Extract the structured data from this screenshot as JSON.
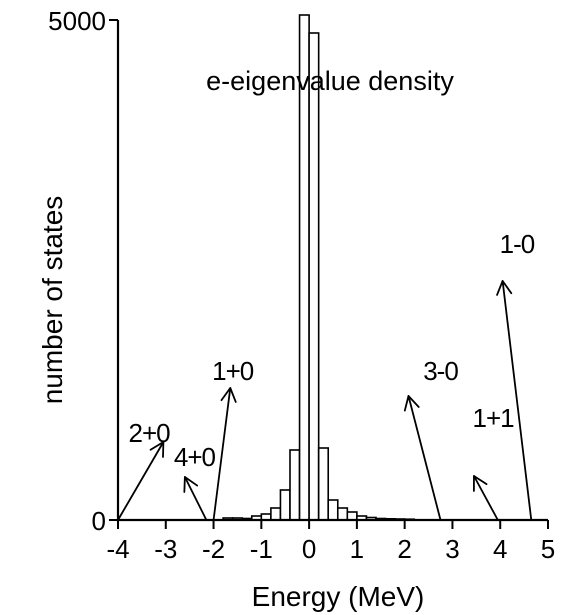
{
  "chart_data": {
    "type": "bar",
    "title": "e-eigenvalue density",
    "xlabel": "Energy (MeV)",
    "ylabel": "number of states",
    "xlim": [
      -4,
      5
    ],
    "ylim": [
      0,
      5000
    ],
    "xticks": [
      "-4",
      "-3",
      "-2",
      "-1",
      "0",
      "1",
      "2",
      "3",
      "4",
      "5"
    ],
    "yticks": [
      "0",
      "5000"
    ],
    "bin_width": 0.2,
    "bins": [
      {
        "x": -1.8,
        "value": 20
      },
      {
        "x": -1.6,
        "value": 20
      },
      {
        "x": -1.4,
        "value": 15
      },
      {
        "x": -1.2,
        "value": 40
      },
      {
        "x": -1.0,
        "value": 60
      },
      {
        "x": -0.8,
        "value": 120
      },
      {
        "x": -0.6,
        "value": 300
      },
      {
        "x": -0.4,
        "value": 700
      },
      {
        "x": -0.2,
        "value": 5050
      },
      {
        "x": 0.0,
        "value": 4870
      },
      {
        "x": 0.2,
        "value": 720
      },
      {
        "x": 0.4,
        "value": 200
      },
      {
        "x": 0.6,
        "value": 120
      },
      {
        "x": 0.8,
        "value": 80
      },
      {
        "x": 1.0,
        "value": 40
      },
      {
        "x": 1.2,
        "value": 25
      },
      {
        "x": 1.4,
        "value": 15
      },
      {
        "x": 1.6,
        "value": 12
      },
      {
        "x": 1.8,
        "value": 10
      },
      {
        "x": 2.0,
        "value": 8
      }
    ],
    "annotations": [
      {
        "label": "2+0",
        "text_x": -3.35,
        "text_y": 780,
        "arrow_from": [
          -4.0,
          0
        ],
        "arrow_to": [
          -3.05,
          780
        ]
      },
      {
        "label": "4+0",
        "text_x": -2.4,
        "text_y": 540,
        "arrow_from": [
          -2.15,
          0
        ],
        "arrow_to": [
          -2.6,
          430
        ]
      },
      {
        "label": "1+0",
        "text_x": -1.6,
        "text_y": 1400,
        "arrow_from": [
          -2.0,
          0
        ],
        "arrow_to": [
          -1.65,
          1320
        ]
      },
      {
        "label": "3-0",
        "text_x": 2.75,
        "text_y": 1400,
        "arrow_from": [
          2.75,
          0
        ],
        "arrow_to": [
          2.08,
          1240
        ]
      },
      {
        "label": "1+1",
        "text_x": 3.85,
        "text_y": 930,
        "arrow_from": [
          3.95,
          0
        ],
        "arrow_to": [
          3.45,
          440
        ]
      },
      {
        "label": "1-0",
        "text_x": 4.35,
        "text_y": 2670,
        "arrow_from": [
          4.65,
          0
        ],
        "arrow_to": [
          4.05,
          2390
        ]
      }
    ]
  }
}
